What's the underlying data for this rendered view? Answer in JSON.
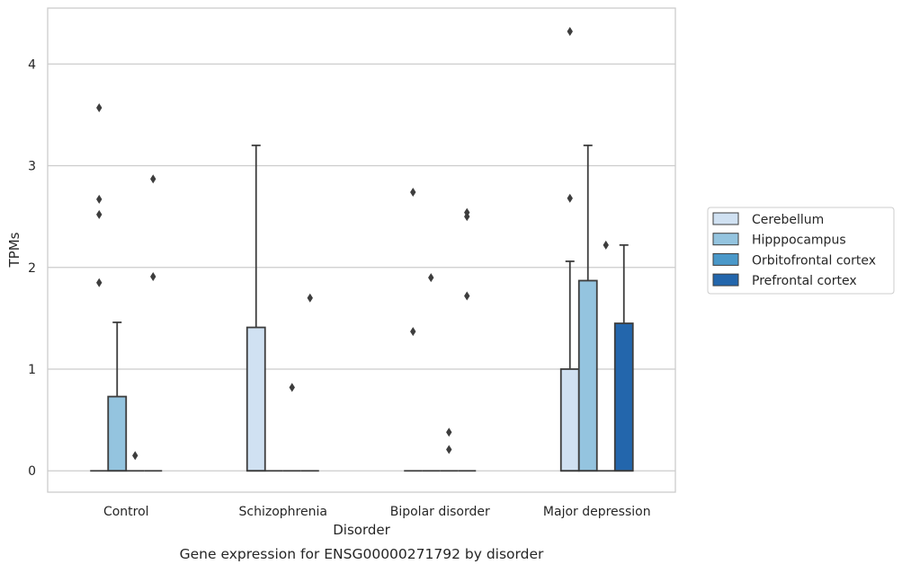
{
  "chart_data": {
    "type": "boxplot",
    "caption": "Gene expression for ENSG00000271792 by disorder",
    "xlabel": "Disorder",
    "ylabel": "TPMs",
    "ylim": [
      -0.21,
      4.55
    ],
    "y_ticks": [
      0,
      1,
      2,
      3,
      4
    ],
    "grid": "horizontal",
    "legend_position": "right",
    "categories": [
      "Control",
      "Schizophrenia",
      "Bipolar disorder",
      "Major depression"
    ],
    "series": [
      {
        "name": "Cerebellum",
        "color": "#d0e1f2"
      },
      {
        "name": "Hipppocampus",
        "color": "#94c4df"
      },
      {
        "name": "Orbitofrontal cortex",
        "color": "#4a98c9"
      },
      {
        "name": "Prefrontal cortex",
        "color": "#2366ac"
      }
    ],
    "boxes": [
      {
        "category": "Control",
        "series": "Cerebellum",
        "q1": 0,
        "median": 0,
        "q3": 0,
        "whisker_low": 0,
        "whisker_high": 0,
        "outliers": [
          2.67,
          2.52,
          1.85,
          3.57
        ]
      },
      {
        "category": "Control",
        "series": "Hipppocampus",
        "q1": 0,
        "median": 0,
        "q3": 0.73,
        "whisker_low": 0,
        "whisker_high": 1.46,
        "outliers": []
      },
      {
        "category": "Control",
        "series": "Orbitofrontal cortex",
        "q1": 0,
        "median": 0,
        "q3": 0,
        "whisker_low": 0,
        "whisker_high": 0,
        "outliers": [
          0.15
        ]
      },
      {
        "category": "Control",
        "series": "Prefrontal cortex",
        "q1": 0,
        "median": 0,
        "q3": 0,
        "whisker_low": 0,
        "whisker_high": 0,
        "outliers": [
          2.87,
          1.91
        ]
      },
      {
        "category": "Schizophrenia",
        "series": "Cerebellum",
        "q1": 0,
        "median": 0,
        "q3": 1.41,
        "whisker_low": 0,
        "whisker_high": 3.2,
        "outliers": []
      },
      {
        "category": "Schizophrenia",
        "series": "Hipppocampus",
        "q1": 0,
        "median": 0,
        "q3": 0,
        "whisker_low": 0,
        "whisker_high": 0,
        "outliers": []
      },
      {
        "category": "Schizophrenia",
        "series": "Orbitofrontal cortex",
        "q1": 0,
        "median": 0,
        "q3": 0,
        "whisker_low": 0,
        "whisker_high": 0,
        "outliers": [
          0.82
        ]
      },
      {
        "category": "Schizophrenia",
        "series": "Prefrontal cortex",
        "q1": 0,
        "median": 0,
        "q3": 0,
        "whisker_low": 0,
        "whisker_high": 0,
        "outliers": [
          1.7
        ]
      },
      {
        "category": "Bipolar disorder",
        "series": "Cerebellum",
        "q1": 0,
        "median": 0,
        "q3": 0,
        "whisker_low": 0,
        "whisker_high": 0,
        "outliers": [
          2.74,
          1.37
        ]
      },
      {
        "category": "Bipolar disorder",
        "series": "Hipppocampus",
        "q1": 0,
        "median": 0,
        "q3": 0,
        "whisker_low": 0,
        "whisker_high": 0,
        "outliers": [
          1.9
        ]
      },
      {
        "category": "Bipolar disorder",
        "series": "Orbitofrontal cortex",
        "q1": 0,
        "median": 0,
        "q3": 0,
        "whisker_low": 0,
        "whisker_high": 0,
        "outliers": [
          0.38,
          0.21
        ]
      },
      {
        "category": "Bipolar disorder",
        "series": "Prefrontal cortex",
        "q1": 0,
        "median": 0,
        "q3": 0,
        "whisker_low": 0,
        "whisker_high": 0,
        "outliers": [
          2.54,
          2.5,
          1.72
        ]
      },
      {
        "category": "Major depression",
        "series": "Cerebellum",
        "q1": 0,
        "median": 0,
        "q3": 1.0,
        "whisker_low": 0,
        "whisker_high": 2.06,
        "outliers": [
          4.32,
          2.68
        ]
      },
      {
        "category": "Major depression",
        "series": "Hipppocampus",
        "q1": 0,
        "median": 0,
        "q3": 1.87,
        "whisker_low": 0,
        "whisker_high": 3.2,
        "outliers": []
      },
      {
        "category": "Major depression",
        "series": "Orbitofrontal cortex",
        "q1": 0,
        "median": 0,
        "q3": 0,
        "whisker_low": 0,
        "whisker_high": 0,
        "outliers": [
          2.22
        ]
      },
      {
        "category": "Major depression",
        "series": "Prefrontal cortex",
        "q1": 0,
        "median": 0,
        "q3": 1.45,
        "whisker_low": 0,
        "whisker_high": 2.22,
        "outliers": []
      }
    ]
  }
}
